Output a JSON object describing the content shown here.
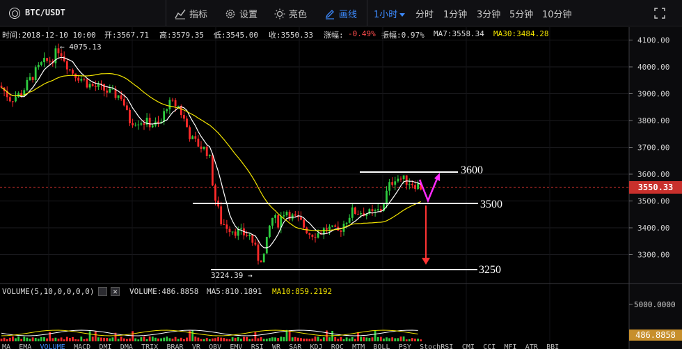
{
  "toolbar": {
    "pair": "BTC/USDT",
    "tools": [
      {
        "label": "指标",
        "icon": "indicator-icon"
      },
      {
        "label": "设置",
        "icon": "gear-icon"
      },
      {
        "label": "亮色",
        "icon": "sun-icon"
      },
      {
        "label": "画线",
        "icon": "pencil-icon"
      }
    ],
    "periods": [
      "1小时",
      "分时",
      "1分钟",
      "3分钟",
      "5分钟",
      "10分钟"
    ],
    "active_period": "1小时",
    "fullscreen_icon": "fullscreen-icon"
  },
  "info": {
    "time": "时间:2018-12-10 10:00",
    "open": "开:3567.71",
    "high": "高:3579.35",
    "low": "低:3545.00",
    "close": "收:3550.33",
    "change_label": "涨幅:",
    "change_value": "-0.49%",
    "amp": "振幅:0.97%",
    "ma7": "MA7:3558.34",
    "ma30": "MA30:3484.28"
  },
  "price_axis": {
    "labels": [
      "4100.00",
      "4000.00",
      "3900.00",
      "3800.00",
      "3700.00",
      "3600.00",
      "3500.00",
      "3400.00",
      "3300.00"
    ],
    "current": "3550.33"
  },
  "annotations": {
    "high_label": "← 4075.13",
    "low_label": "3224.39 →",
    "line_3600": "3600",
    "line_3500": "3500",
    "line_3250": "3250"
  },
  "volume": {
    "title": "VOLUME(5,10,0,0,0,0)",
    "value": "VOLUME:486.8858",
    "ma5": "MA5:810.1891",
    "ma10": "MA10:859.2192",
    "axis_label": "5000.0000",
    "current": "486.8858"
  },
  "indicators": [
    "MA",
    "EMA",
    "VOLUME",
    "MACD",
    "DMI",
    "DMA",
    "TRIX",
    "BRAR",
    "VR",
    "OBV",
    "EMV",
    "RSI",
    "WR",
    "SAR",
    "KDJ",
    "ROC",
    "MTM",
    "BOLL",
    "PSY",
    "StochRSI",
    "CMI",
    "CCI",
    "MFI",
    "ATR",
    "BBI"
  ],
  "selected_indicator": "VOLUME",
  "colors": {
    "up": "#2ecc40",
    "down": "#ff2a2a",
    "ma7": "#ffffff",
    "ma30": "#f2e400",
    "accent": "#3d8bff",
    "arrow_magenta": "#ff2aff",
    "arrow_red": "#ff3333"
  }
}
